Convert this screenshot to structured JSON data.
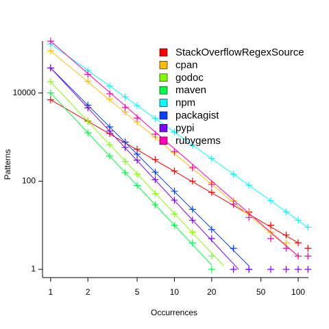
{
  "chart_data": {
    "type": "scatter",
    "x_label": "Occurrences",
    "y_label": "Patterns",
    "log_x": true,
    "log_y": true,
    "xlim": [
      0.86,
      121
    ],
    "ylim": [
      0.65,
      150000
    ],
    "xticks": [
      1,
      2,
      5,
      10,
      20,
      50,
      100
    ],
    "yticks": [
      1,
      100,
      10000
    ],
    "legend": "top-right",
    "x": [
      1,
      2,
      3,
      4,
      5,
      7,
      10,
      14,
      20,
      30,
      40,
      60,
      80,
      100,
      120
    ],
    "series": [
      {
        "name": "StackOverflowRegexSource",
        "color": "#ff0000",
        "values": [
          7000,
          2300,
          1200,
          770,
          530,
          310,
          170,
          100,
          56,
          30,
          20,
          10,
          6,
          4,
          3
        ],
        "trend_x": [
          1,
          100
        ],
        "trend": [
          7000,
          4
        ]
      },
      {
        "name": "cpan",
        "color": "#ffbf00",
        "values": [
          90000,
          18300,
          7200,
          3700,
          2200,
          1000,
          450,
          210,
          92,
          36,
          19,
          7,
          4,
          2,
          2
        ],
        "trend_x": [
          1,
          100
        ],
        "trend": [
          90000,
          2
        ]
      },
      {
        "name": "godoc",
        "color": "#80ff00",
        "values": [
          18000,
          2250,
          670,
          280,
          144,
          52,
          18,
          7,
          2,
          1,
          null,
          null,
          null,
          null,
          null
        ],
        "trend_x": [
          1,
          25
        ],
        "trend": [
          18000,
          1.2
        ]
      },
      {
        "name": "maven",
        "color": "#00ff40",
        "values": [
          10000,
          1250,
          370,
          156,
          80,
          29,
          10,
          4,
          1,
          null,
          null,
          null,
          null,
          null,
          null
        ],
        "trend_x": [
          1,
          20
        ],
        "trend": [
          10000,
          1.25
        ]
      },
      {
        "name": "npm",
        "color": "#00ffff",
        "values": [
          130000,
          32500,
          14400,
          8100,
          5200,
          2650,
          1300,
          660,
          325,
          144,
          81,
          36,
          20,
          13,
          9
        ],
        "trend_x": [
          1,
          120
        ],
        "trend": [
          130000,
          9
        ]
      },
      {
        "name": "packagist",
        "color": "#0040ff",
        "values": [
          37000,
          5300,
          1700,
          760,
          410,
          160,
          59,
          23,
          8,
          3,
          1,
          null,
          null,
          null,
          null
        ],
        "trend_x": [
          1,
          40
        ],
        "trend": [
          37000,
          1.2
        ]
      },
      {
        "name": "pypi",
        "color": "#8000ff",
        "values": [
          37000,
          4600,
          1370,
          580,
          300,
          108,
          37,
          13,
          5,
          1,
          1,
          1,
          1,
          1,
          1
        ],
        "trend_x": [
          1,
          33
        ],
        "trend": [
          37000,
          1
        ]
      },
      {
        "name": "rubygems",
        "color": "#ff00bf",
        "values": [
          150000,
          26500,
          9600,
          4700,
          2700,
          1160,
          470,
          200,
          84,
          30,
          15,
          5,
          3,
          2,
          2
        ],
        "trend_x": [
          1,
          100
        ],
        "trend": [
          150000,
          2
        ]
      }
    ]
  }
}
